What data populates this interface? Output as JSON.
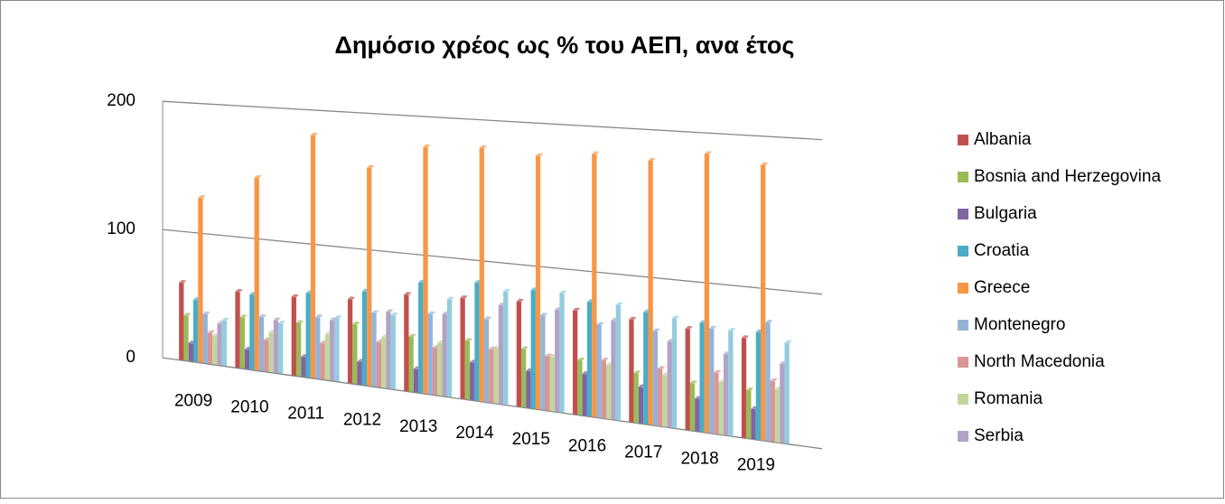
{
  "chart_data": {
    "type": "bar",
    "title": "Δημόσιο χρέος ως % του ΑΕΠ, ανα έτος",
    "categories": [
      "2009",
      "2010",
      "2011",
      "2012",
      "2013",
      "2014",
      "2015",
      "2016",
      "2017",
      "2018",
      "2019"
    ],
    "series": [
      {
        "name": "Albania",
        "color": "#c0504d",
        "values": [
          60,
          58,
          59,
          62,
          70,
          72,
          74,
          72,
          70,
          68,
          66
        ]
      },
      {
        "name": "Bosnia and Herzegovina",
        "color": "#9bbb59",
        "values": [
          35,
          39,
          40,
          44,
          40,
          42,
          41,
          38,
          34,
          32,
          32
        ]
      },
      {
        "name": "Bulgaria",
        "color": "#8064a2",
        "values": [
          14,
          15,
          15,
          17,
          17,
          27,
          26,
          29,
          25,
          22,
          20
        ]
      },
      {
        "name": "Croatia",
        "color": "#4bacc6",
        "values": [
          48,
          57,
          63,
          69,
          80,
          84,
          83,
          79,
          76,
          73,
          71
        ]
      },
      {
        "name": "Greece",
        "color": "#f79646",
        "values": [
          127,
          146,
          181,
          160,
          178,
          180,
          177,
          181,
          179,
          186,
          181
        ]
      },
      {
        "name": "Montenegro",
        "color": "#95b3d7",
        "values": [
          38,
          41,
          46,
          54,
          58,
          59,
          66,
          64,
          64,
          70,
          78
        ]
      },
      {
        "name": "North Macedonia",
        "color": "#d99694",
        "values": [
          24,
          24,
          27,
          33,
          34,
          38,
          38,
          40,
          39,
          41,
          40
        ]
      },
      {
        "name": "Romania",
        "color": "#c3d69b",
        "values": [
          22,
          30,
          34,
          37,
          38,
          39,
          38,
          37,
          35,
          35,
          35
        ]
      },
      {
        "name": "Serbia",
        "color": "#b3a2c7",
        "values": [
          32,
          40,
          45,
          56,
          59,
          70,
          71,
          68,
          58,
          54,
          52
        ]
      },
      {
        "color": "#93cddd",
        "values": [
          35,
          38,
          47,
          54,
          70,
          80,
          83,
          79,
          74,
          70,
          66
        ]
      }
    ],
    "ylim": [
      0,
      200
    ],
    "yticks": [
      0,
      100,
      200
    ],
    "grid": true,
    "legend": "right"
  }
}
